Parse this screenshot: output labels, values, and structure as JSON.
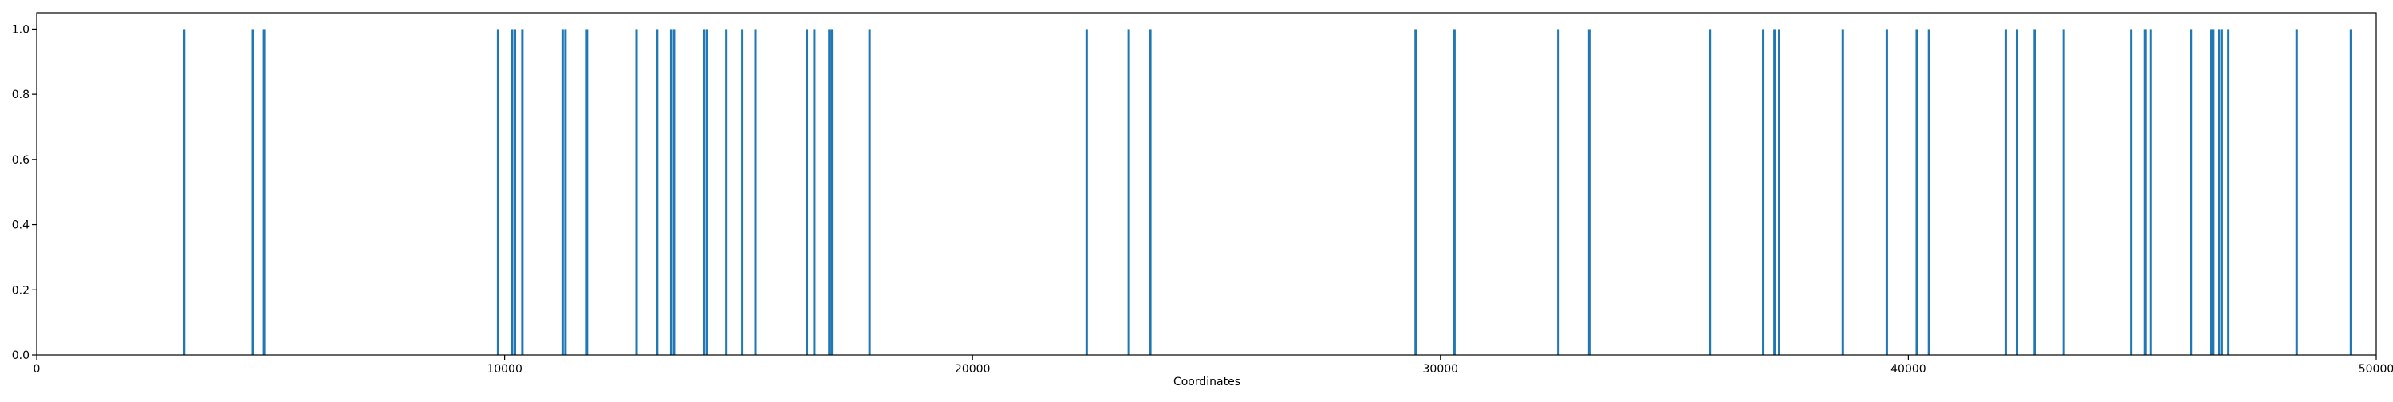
{
  "chart_data": {
    "type": "bar",
    "title": "",
    "xlabel": "Coordinates",
    "ylabel": "",
    "xlim": [
      0,
      50000
    ],
    "ylim": [
      0,
      1.05
    ],
    "xticks": [
      0,
      10000,
      20000,
      30000,
      40000,
      50000
    ],
    "xtick_labels": [
      "0",
      "10000",
      "20000",
      "30000",
      "40000",
      "50000"
    ],
    "yticks": [
      0.0,
      0.2,
      0.4,
      0.6,
      0.8,
      1.0
    ],
    "ytick_labels": [
      "0.0",
      "0.2",
      "0.4",
      "0.6",
      "0.8",
      "1.0"
    ],
    "grid": false,
    "color": "#1f77b4",
    "x": [
      3150,
      4620,
      4860,
      9860,
      10160,
      10220,
      10380,
      11240,
      11300,
      11760,
      12820,
      13260,
      13560,
      13620,
      14260,
      14320,
      14740,
      15080,
      15360,
      16460,
      16620,
      16940,
      16990,
      17800,
      22440,
      23340,
      23800,
      29470,
      30300,
      32520,
      33180,
      35760,
      36900,
      37140,
      37240,
      38600,
      39540,
      40180,
      40440,
      42080,
      42320,
      42700,
      43320,
      44760,
      45060,
      45180,
      46040,
      46480,
      46520,
      46640,
      46700,
      46840,
      48300,
      49460
    ],
    "values": [
      1,
      1,
      1,
      1,
      1,
      1,
      1,
      1,
      1,
      1,
      1,
      1,
      1,
      1,
      1,
      1,
      1,
      1,
      1,
      1,
      1,
      1,
      1,
      1,
      1,
      1,
      1,
      1,
      1,
      1,
      1,
      1,
      1,
      1,
      1,
      1,
      1,
      1,
      1,
      1,
      1,
      1,
      1,
      1,
      1,
      1,
      1,
      1,
      1,
      1,
      1,
      1,
      1,
      1
    ]
  }
}
